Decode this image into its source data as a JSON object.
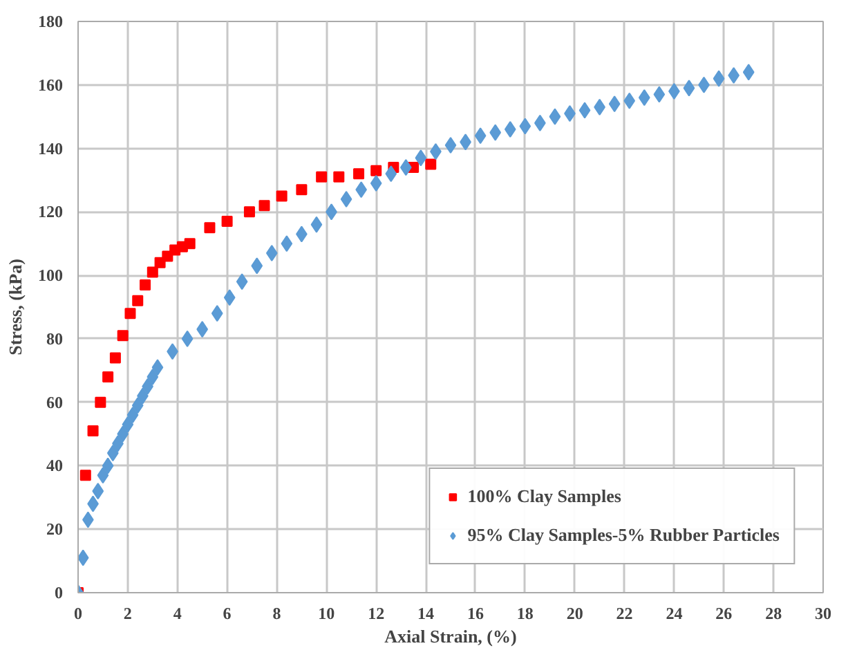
{
  "chart_data": {
    "type": "scatter",
    "xlabel": "Axial Strain, (%)",
    "ylabel": "Stress, (kPa)",
    "xlim": [
      0,
      30
    ],
    "xticks": [
      0,
      2,
      4,
      6,
      8,
      10,
      12,
      14,
      16,
      18,
      20,
      22,
      24,
      26,
      28,
      30
    ],
    "ylim": [
      0,
      180
    ],
    "yticks": [
      0,
      20,
      40,
      60,
      80,
      100,
      120,
      140,
      160,
      180
    ],
    "grid": true,
    "legend": "bottom right",
    "series": [
      {
        "name": "100% Clay Samples",
        "color": "#ff0000",
        "marker": "square",
        "x": [
          0,
          0.3,
          0.6,
          0.9,
          1.2,
          1.5,
          1.8,
          2.1,
          2.4,
          2.7,
          3.0,
          3.3,
          3.6,
          3.9,
          4.2,
          4.5,
          5.3,
          6.0,
          6.9,
          7.5,
          8.2,
          9.0,
          9.8,
          10.5,
          11.3,
          12.0,
          12.7,
          13.5,
          14.2
        ],
        "values": [
          0,
          37,
          51,
          60,
          68,
          74,
          81,
          88,
          92,
          97,
          101,
          104,
          106,
          108,
          109,
          110,
          115,
          117,
          120,
          122,
          125,
          127,
          131,
          131,
          132,
          133,
          134,
          134,
          135
        ]
      },
      {
        "name": "95% Clay Samples-5% Rubber Particles",
        "color": "#5b9bd5",
        "marker": "diamond",
        "x": [
          0,
          0.2,
          0.4,
          0.6,
          0.8,
          1.0,
          1.2,
          1.4,
          1.6,
          1.8,
          2.0,
          2.2,
          2.4,
          2.6,
          2.8,
          3.0,
          3.2,
          3.8,
          4.4,
          5.0,
          5.6,
          6.1,
          6.6,
          7.2,
          7.8,
          8.4,
          9.0,
          9.6,
          10.2,
          10.8,
          11.4,
          12.0,
          12.6,
          13.2,
          13.8,
          14.4,
          15.0,
          15.6,
          16.2,
          16.8,
          17.4,
          18.0,
          18.6,
          19.2,
          19.8,
          20.4,
          21.0,
          21.6,
          22.2,
          22.8,
          23.4,
          24.0,
          24.6,
          25.2,
          25.8,
          26.4,
          27.0
        ],
        "values": [
          0,
          11,
          23,
          28,
          32,
          37,
          40,
          44,
          47,
          50,
          53,
          56,
          59,
          62,
          65,
          68,
          71,
          76,
          80,
          83,
          88,
          93,
          98,
          103,
          107,
          110,
          113,
          116,
          120,
          124,
          127,
          129,
          132,
          134,
          137,
          139,
          141,
          142,
          144,
          145,
          146,
          147,
          148,
          150,
          151,
          152,
          153,
          154,
          155,
          156,
          157,
          158,
          159,
          160,
          162,
          163,
          164
        ]
      }
    ]
  }
}
